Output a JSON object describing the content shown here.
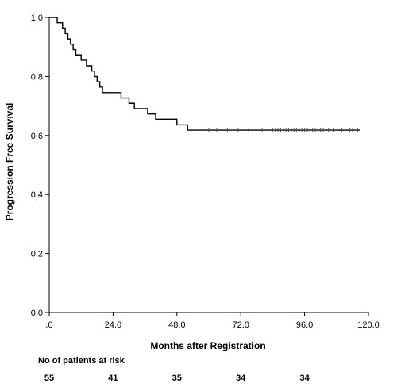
{
  "chart_data": {
    "type": "line",
    "title": "",
    "xlabel": "Months after Registration",
    "ylabel": "Progression Free Survival",
    "xlim": [
      0,
      120
    ],
    "ylim": [
      0,
      1
    ],
    "x_ticks": [
      0,
      24,
      48,
      72,
      96,
      120
    ],
    "x_tick_labels": [
      ".0",
      "24.0",
      "48.0",
      "72.0",
      "96.0",
      "120.0"
    ],
    "y_ticks": [
      0,
      0.2,
      0.4,
      0.6,
      0.8,
      1.0
    ],
    "y_tick_labels": [
      "0.0",
      "0.2",
      "0.4",
      "0.6",
      "0.8",
      "1.0"
    ],
    "grid": false,
    "series": [
      {
        "x": [
          0,
          3,
          5,
          6,
          7,
          8,
          9,
          10,
          12,
          14,
          16,
          17,
          18,
          19,
          20,
          22,
          27,
          30,
          32,
          37,
          40,
          48,
          52,
          117
        ],
        "y": [
          1.0,
          0.982,
          0.964,
          0.945,
          0.927,
          0.909,
          0.891,
          0.873,
          0.855,
          0.836,
          0.818,
          0.8,
          0.782,
          0.764,
          0.745,
          0.745,
          0.727,
          0.709,
          0.691,
          0.673,
          0.655,
          0.636,
          0.618,
          0.618
        ]
      }
    ],
    "censored": {
      "x": [
        60,
        63,
        67,
        71,
        75,
        80,
        84,
        85,
        86,
        87,
        88,
        89,
        90,
        91,
        92,
        93,
        94,
        95,
        96,
        97,
        98,
        99,
        100,
        101,
        102,
        103,
        105,
        107,
        110,
        113,
        114,
        116
      ],
      "y": 0.618
    },
    "risk_table": {
      "label": "No of patients at risk",
      "x": [
        0,
        24,
        48,
        72,
        96
      ],
      "counts": [
        "55",
        "41",
        "35",
        "34",
        "34"
      ]
    }
  }
}
